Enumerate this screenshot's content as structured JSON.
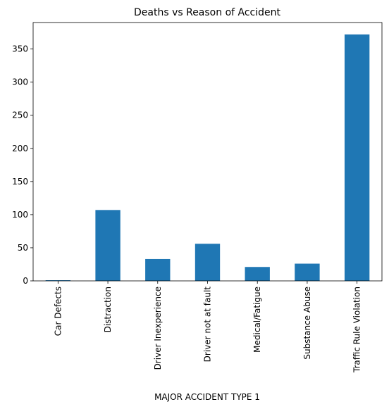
{
  "chart_data": {
    "type": "bar",
    "title": "Deaths vs Reason of Accident",
    "xlabel": "MAJOR ACCIDENT TYPE 1",
    "ylabel": "",
    "categories": [
      "Car Defects",
      "Distraction",
      "Driver Inexperience",
      "Driver not at fault",
      "Medical/Fatigue",
      "Substance Abuse",
      "Traffic Rule Violation"
    ],
    "values": [
      1,
      107,
      33,
      56,
      21,
      26,
      372
    ],
    "ylim": [
      0,
      390
    ],
    "yticks": [
      0,
      50,
      100,
      150,
      200,
      250,
      300,
      350
    ],
    "grid": false,
    "legend": "none",
    "colors": {
      "bar": "#1f77b4",
      "axis": "#000000",
      "background": "#ffffff"
    }
  }
}
